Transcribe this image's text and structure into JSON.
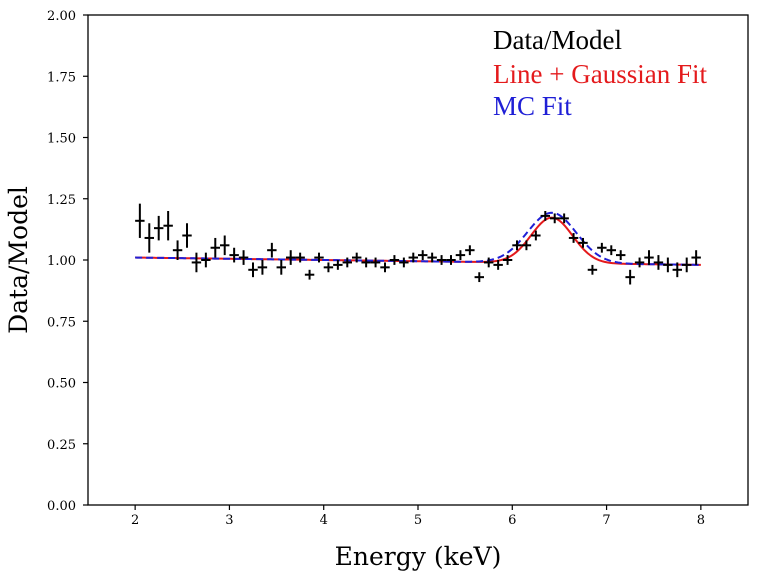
{
  "chart_data": {
    "type": "line",
    "title": "",
    "xlabel": "Energy (keV)",
    "ylabel": "Data/Model",
    "xlim": [
      1.5,
      8.5
    ],
    "ylim": [
      0.0,
      2.0
    ],
    "xticks": [
      2,
      3,
      4,
      5,
      6,
      7,
      8
    ],
    "xtick_labels": [
      "2",
      "3",
      "4",
      "5",
      "6",
      "7",
      "8"
    ],
    "yticks": [
      0.0,
      0.25,
      0.5,
      0.75,
      1.0,
      1.25,
      1.5,
      1.75,
      2.0
    ],
    "ytick_labels": [
      "0.00",
      "0.25",
      "0.50",
      "0.75",
      "1.00",
      "1.25",
      "1.50",
      "1.75",
      "2.00"
    ],
    "grid": false,
    "legend_position": "top-right",
    "series": [
      {
        "name": "Data/Model",
        "kind": "errorbar",
        "color": "#000000",
        "x": [
          2.05,
          2.15,
          2.25,
          2.35,
          2.45,
          2.55,
          2.65,
          2.75,
          2.85,
          2.95,
          3.05,
          3.15,
          3.25,
          3.35,
          3.45,
          3.55,
          3.65,
          3.75,
          3.85,
          3.95,
          4.05,
          4.15,
          4.25,
          4.35,
          4.45,
          4.55,
          4.65,
          4.75,
          4.85,
          4.95,
          5.05,
          5.15,
          5.25,
          5.35,
          5.45,
          5.55,
          5.65,
          5.75,
          5.85,
          5.95,
          6.05,
          6.15,
          6.25,
          6.35,
          6.45,
          6.55,
          6.65,
          6.75,
          6.85,
          6.95,
          7.05,
          7.15,
          7.25,
          7.35,
          7.45,
          7.55,
          7.65,
          7.75,
          7.85,
          7.95
        ],
        "y": [
          1.16,
          1.09,
          1.13,
          1.14,
          1.04,
          1.1,
          0.99,
          1.0,
          1.05,
          1.06,
          1.02,
          1.01,
          0.96,
          0.97,
          1.04,
          0.97,
          1.01,
          1.01,
          0.94,
          1.01,
          0.97,
          0.98,
          0.99,
          1.01,
          0.99,
          0.99,
          0.97,
          1.0,
          0.99,
          1.01,
          1.02,
          1.01,
          1.0,
          1.0,
          1.02,
          1.04,
          0.93,
          0.99,
          0.98,
          1.0,
          1.06,
          1.06,
          1.1,
          1.18,
          1.17,
          1.17,
          1.09,
          1.07,
          0.96,
          1.05,
          1.04,
          1.02,
          0.93,
          0.99,
          1.01,
          0.99,
          0.98,
          0.96,
          0.98,
          1.01
        ],
        "yerr": [
          0.07,
          0.06,
          0.05,
          0.06,
          0.04,
          0.05,
          0.04,
          0.03,
          0.04,
          0.04,
          0.03,
          0.03,
          0.03,
          0.03,
          0.03,
          0.03,
          0.03,
          0.02,
          0.02,
          0.02,
          0.02,
          0.02,
          0.02,
          0.02,
          0.02,
          0.02,
          0.02,
          0.02,
          0.02,
          0.02,
          0.02,
          0.02,
          0.02,
          0.02,
          0.02,
          0.02,
          0.02,
          0.02,
          0.02,
          0.02,
          0.02,
          0.02,
          0.02,
          0.02,
          0.02,
          0.02,
          0.02,
          0.02,
          0.02,
          0.02,
          0.02,
          0.02,
          0.03,
          0.02,
          0.03,
          0.03,
          0.03,
          0.03,
          0.03,
          0.03
        ],
        "xerr": 0.05
      },
      {
        "name": "Line + Gaussian Fit",
        "kind": "line",
        "color": "#e41a1c",
        "dash": "solid",
        "baseline_start": [
          2.0,
          1.01
        ],
        "baseline_end": [
          8.0,
          0.98
        ],
        "peak_center": 6.42,
        "peak_amplitude": 0.185,
        "peak_sigma": 0.22
      },
      {
        "name": "MC Fit",
        "kind": "line",
        "color": "#1f1fd6",
        "dash": "dashed",
        "baseline_start": [
          2.0,
          1.01
        ],
        "baseline_end": [
          8.0,
          0.98
        ],
        "peak_center": 6.42,
        "peak_amplitude": 0.205,
        "peak_sigma": 0.26
      }
    ]
  }
}
